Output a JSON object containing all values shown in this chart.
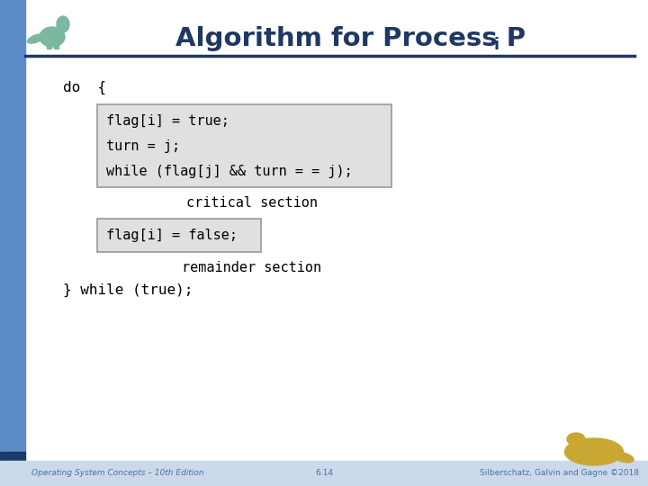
{
  "title_main": "Algorithm for Process P",
  "title_sub": "i",
  "bg_color": "#FFFFFF",
  "left_bar_top_color": "#5b8cc8",
  "left_bar_bottom_color": "#1a3a6b",
  "header_line_color": "#1f3864",
  "title_color": "#1f3864",
  "code_color": "#000000",
  "code_bg": "#e0e0e0",
  "code_border": "#999999",
  "footer_bg": "#ccd9ea",
  "footer_text_color": "#4472a8",
  "do_line": "do  {",
  "box1_lines": [
    "flag[i] = true;",
    "turn = j;",
    "while (flag[j] && turn = = j);"
  ],
  "critical_section": "critical section",
  "box2_lines": [
    "flag[i] = false;"
  ],
  "remainder_section": "remainder section",
  "end_line": "} while (true);",
  "footer_left": "Operating System Concepts – 10th Edition",
  "footer_center": "6.14",
  "footer_right": "Silberschatz, Galvin and Gagne ©2018",
  "fig_width": 7.2,
  "fig_height": 5.4,
  "dpi": 100
}
